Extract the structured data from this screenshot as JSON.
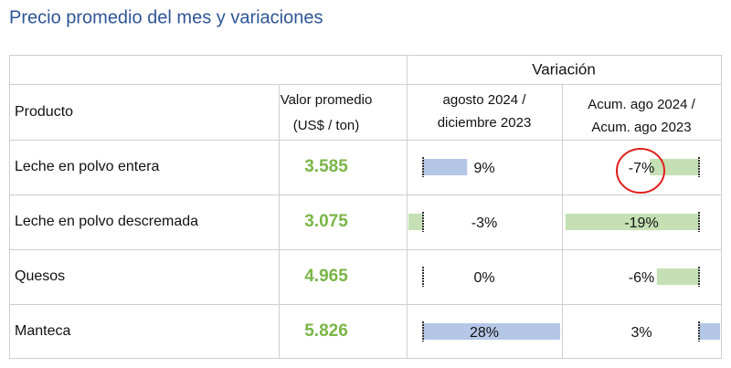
{
  "title": "Precio promedio del mes y variaciones",
  "table": {
    "group_header": "Variación",
    "headers": [
      "Producto",
      [
        "Valor promedio",
        "(US$ / ton)"
      ],
      [
        "agosto 2024 /",
        "diciembre 2023"
      ],
      [
        "Acum. ago 2024 /",
        "Acum. ago 2023"
      ]
    ],
    "rows": [
      [
        "Leche en polvo entera",
        "3.585",
        {
          "value": 9,
          "label": "9%"
        },
        {
          "value": -7,
          "label": "-7%"
        }
      ],
      [
        "Leche en polvo descremada",
        "3.075",
        {
          "value": -3,
          "label": "-3%"
        },
        {
          "value": -19,
          "label": "-19%"
        }
      ],
      [
        "Quesos",
        "4.965",
        {
          "value": 0,
          "label": "0%"
        },
        {
          "value": -6,
          "label": "-6%"
        }
      ],
      [
        "Manteca",
        "5.826",
        {
          "value": 28,
          "label": "28%"
        },
        {
          "value": 3,
          "label": "3%"
        }
      ]
    ]
  }
}
